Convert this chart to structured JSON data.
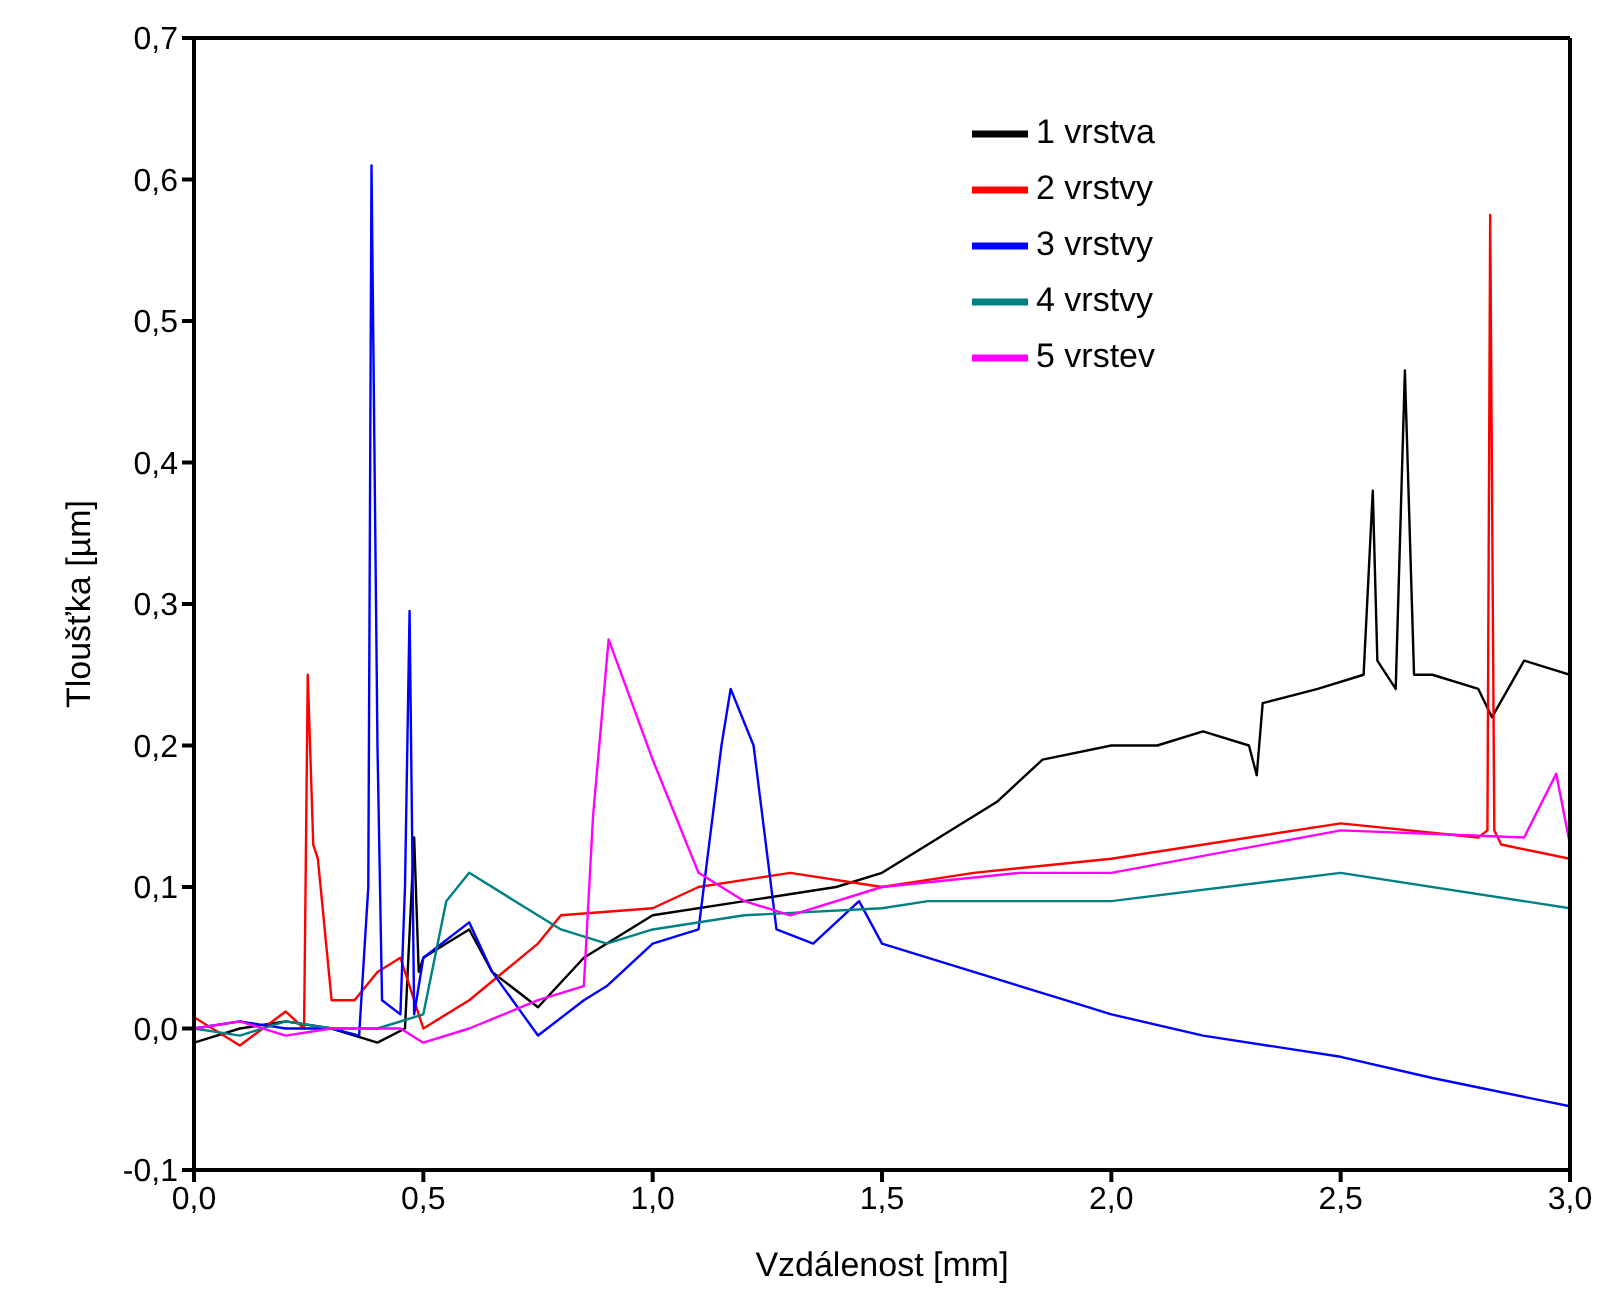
{
  "chart_data": {
    "type": "line",
    "xlabel": "Vzdálenost [mm]",
    "ylabel": "Tloušťka [µm]",
    "xlim": [
      0,
      3
    ],
    "xticks": [
      {
        "value": 0,
        "label": "0,0"
      },
      {
        "value": 0.5,
        "label": "0,5"
      },
      {
        "value": 1,
        "label": "1,0"
      },
      {
        "value": 1.5,
        "label": "1,5"
      },
      {
        "value": 2,
        "label": "2,0"
      },
      {
        "value": 2.5,
        "label": "2,5"
      },
      {
        "value": 3,
        "label": "3,0"
      }
    ],
    "ylim": [
      -0.1,
      0.7
    ],
    "yticks": [
      {
        "value": -0.1,
        "label": "-0,1"
      },
      {
        "value": 0,
        "label": "0,0"
      },
      {
        "value": 0.1,
        "label": "0,1"
      },
      {
        "value": 0.2,
        "label": "0,2"
      },
      {
        "value": 0.3,
        "label": "0,3"
      },
      {
        "value": 0.4,
        "label": "0,4"
      },
      {
        "value": 0.5,
        "label": "0,5"
      },
      {
        "value": 0.6,
        "label": "0,6"
      },
      {
        "value": 0.7,
        "label": "0,7"
      }
    ],
    "grid": false,
    "legend": "top right",
    "marker": "none",
    "line_style": "solid",
    "series": [
      {
        "name": "1 vrstva",
        "color": "#000000",
        "x": [
          0,
          0.1,
          0.2,
          0.3,
          0.4,
          0.46,
          0.48,
          0.49,
          0.5,
          0.55,
          0.6,
          0.65,
          0.75,
          0.85,
          1.0,
          1.2,
          1.4,
          1.5,
          1.6,
          1.75,
          1.85,
          2.0,
          2.1,
          2.2,
          2.3,
          2.317,
          2.33,
          2.45,
          2.55,
          2.57,
          2.58,
          2.62,
          2.64,
          2.66,
          2.7,
          2.8,
          2.83,
          2.9,
          3.0
        ],
        "values": [
          -0.01,
          0.0,
          0.005,
          0.0,
          -0.01,
          0.0,
          0.135,
          0.04,
          0.05,
          0.06,
          0.07,
          0.04,
          0.015,
          0.05,
          0.08,
          0.09,
          0.1,
          0.11,
          0.13,
          0.16,
          0.19,
          0.2,
          0.2,
          0.21,
          0.2,
          0.179,
          0.23,
          0.24,
          0.25,
          0.38,
          0.26,
          0.24,
          0.465,
          0.25,
          0.25,
          0.24,
          0.22,
          0.26,
          0.25
        ]
      },
      {
        "name": "2 vrstvy",
        "color": "#ff0000",
        "x": [
          0,
          0.1,
          0.2,
          0.24,
          0.248,
          0.26,
          0.27,
          0.3,
          0.35,
          0.4,
          0.45,
          0.5,
          0.6,
          0.75,
          0.8,
          1.0,
          1.1,
          1.3,
          1.5,
          1.7,
          2.0,
          2.5,
          2.8,
          2.82,
          2.826,
          2.835,
          2.85,
          3.0
        ],
        "values": [
          0.008,
          -0.012,
          0.012,
          0.0,
          0.25,
          0.13,
          0.12,
          0.02,
          0.02,
          0.04,
          0.05,
          0.0,
          0.02,
          0.06,
          0.08,
          0.085,
          0.1,
          0.11,
          0.1,
          0.11,
          0.12,
          0.145,
          0.135,
          0.14,
          0.575,
          0.14,
          0.13,
          0.12
        ]
      },
      {
        "name": "3 vrstvy",
        "color": "#0000ff",
        "x": [
          0,
          0.1,
          0.2,
          0.3,
          0.36,
          0.38,
          0.387,
          0.4,
          0.41,
          0.45,
          0.46,
          0.47,
          0.48,
          0.5,
          0.6,
          0.65,
          0.75,
          0.85,
          0.9,
          1.0,
          1.1,
          1.15,
          1.17,
          1.22,
          1.27,
          1.35,
          1.45,
          1.5,
          1.7,
          1.9,
          2.0,
          2.2,
          2.5,
          2.7,
          3.0
        ],
        "values": [
          0.0,
          0.005,
          0.0,
          0.0,
          -0.005,
          0.1,
          0.61,
          0.2,
          0.02,
          0.01,
          0.1,
          0.295,
          0.01,
          0.05,
          0.075,
          0.04,
          -0.005,
          0.02,
          0.03,
          0.06,
          0.07,
          0.2,
          0.24,
          0.2,
          0.07,
          0.06,
          0.09,
          0.06,
          0.04,
          0.02,
          0.01,
          -0.005,
          -0.02,
          -0.035,
          -0.055
        ]
      },
      {
        "name": "4 vrstvy",
        "color": "#008080",
        "x": [
          0,
          0.1,
          0.2,
          0.3,
          0.4,
          0.5,
          0.55,
          0.6,
          0.7,
          0.8,
          0.9,
          1.0,
          1.2,
          1.5,
          1.6,
          2.0,
          2.5,
          3.0
        ],
        "values": [
          0.0,
          -0.005,
          0.005,
          0.0,
          0.0,
          0.01,
          0.09,
          0.11,
          0.09,
          0.07,
          0.06,
          0.07,
          0.08,
          0.085,
          0.09,
          0.09,
          0.11,
          0.085
        ]
      },
      {
        "name": "5 vrstev",
        "color": "#ff00ff",
        "x": [
          0,
          0.1,
          0.2,
          0.3,
          0.45,
          0.5,
          0.6,
          0.75,
          0.85,
          0.87,
          0.904,
          1.0,
          1.1,
          1.2,
          1.3,
          1.5,
          1.8,
          2.0,
          2.5,
          2.9,
          2.97,
          3.0
        ],
        "values": [
          0.0,
          0.005,
          -0.005,
          0.0,
          0.0,
          -0.01,
          0.0,
          0.02,
          0.03,
          0.15,
          0.275,
          0.19,
          0.11,
          0.09,
          0.08,
          0.1,
          0.11,
          0.11,
          0.14,
          0.135,
          0.18,
          0.13
        ]
      }
    ]
  }
}
